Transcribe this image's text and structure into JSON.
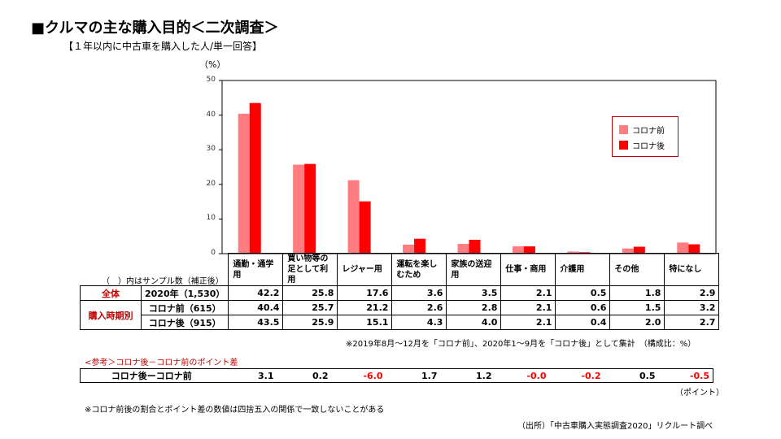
{
  "title": "■クルマの主な購入目的＜二次調査＞",
  "subtitle": "【１年以内に中古車を購入した人/単一回答】",
  "unit_label": "（%）",
  "colors": {
    "before": "#ff7c80",
    "after": "#ff0000",
    "negative": "#ff0000",
    "accent": "#c00000"
  },
  "chart_data": {
    "type": "bar",
    "categories": [
      "通勤・通学用",
      "買い物等の足として利用",
      "レジャー用",
      "運転を楽しむため",
      "家族の送迎用",
      "仕事・商用",
      "介護用",
      "その他",
      "特になし"
    ],
    "series": [
      {
        "name": "コロナ前",
        "values": [
          40.4,
          25.7,
          21.2,
          2.6,
          2.8,
          2.1,
          0.6,
          1.5,
          3.2
        ]
      },
      {
        "name": "コロナ後",
        "values": [
          43.5,
          25.9,
          15.1,
          4.3,
          4.0,
          2.1,
          0.4,
          2.0,
          2.7
        ]
      }
    ],
    "ylim": [
      0,
      50
    ],
    "yticks": [
      "0",
      "10",
      "20",
      "30",
      "40",
      "50"
    ],
    "legend": [
      "コロナ前",
      "コロナ後"
    ],
    "legend_position": "top-right"
  },
  "table": {
    "sample_note": "（　）内はサンプル数（補正後）",
    "headers": [
      "通勤・通学用",
      "買い物等の足として利用",
      "レジャー用",
      "運転を楽しむため",
      "家族の送迎用",
      "仕事・商用",
      "介護用",
      "その他",
      "特になし"
    ],
    "rows": [
      {
        "group": "全体",
        "label": "2020年（1,530）",
        "values": [
          "42.2",
          "25.8",
          "17.6",
          "3.6",
          "3.5",
          "2.1",
          "0.5",
          "1.8",
          "2.9"
        ]
      },
      {
        "group": "購入時期別",
        "label": "コロナ前（615）",
        "values": [
          "40.4",
          "25.7",
          "21.2",
          "2.6",
          "2.8",
          "2.1",
          "0.6",
          "1.5",
          "3.2"
        ]
      },
      {
        "group": "",
        "label": "コロナ後（915）",
        "values": [
          "43.5",
          "25.9",
          "15.1",
          "4.3",
          "4.0",
          "2.1",
          "0.4",
          "2.0",
          "2.7"
        ]
      }
    ]
  },
  "footnote1": "※2019年8月～12月を「コロナ前」、2020年1～9月を「コロナ後」として集計　（構成比：%）",
  "diff": {
    "title": "<参考＞コロナ後－コロナ前のポイント差",
    "label": "コロナ後ーコロナ前",
    "values": [
      "3.1",
      "0.2",
      "-6.0",
      "1.7",
      "1.2",
      "-0.0",
      "-0.2",
      "0.5",
      "-0.5"
    ],
    "unit": "（ポイント）"
  },
  "footnote2": "※コロナ前後の割合とポイント差の数値は四捨五入の関係で一致しないことがある",
  "source": "（出所）「中古車購入実態調査2020」リクルート調べ"
}
